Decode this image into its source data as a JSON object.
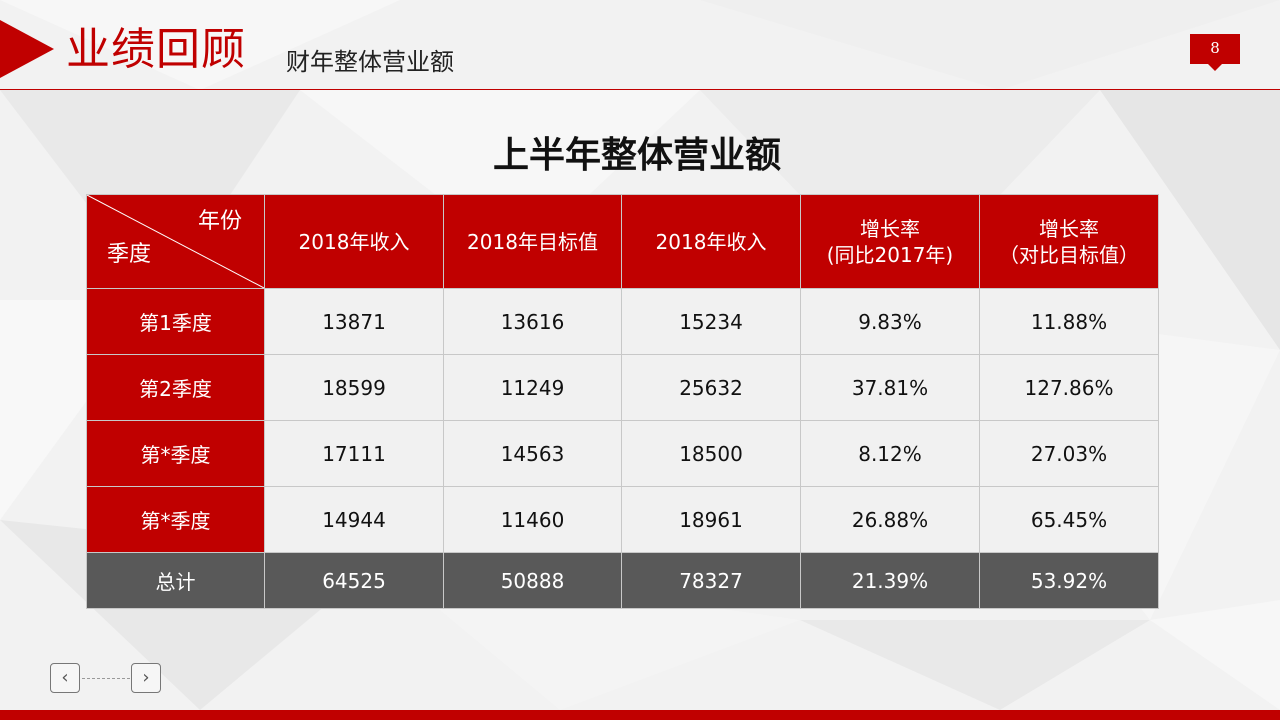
{
  "header": {
    "title": "业绩回顾",
    "subtitle": "财年整体营业额",
    "page_number": "8"
  },
  "table": {
    "title": "上半年整体营业额",
    "corner": {
      "top_label": "年份",
      "bottom_label": "季度"
    },
    "columns": [
      {
        "line1": "2018年收入",
        "line2": ""
      },
      {
        "line1": "2018年目标值",
        "line2": ""
      },
      {
        "line1": "2018年收入",
        "line2": ""
      },
      {
        "line1": "增长率",
        "line2": "(同比2017年)"
      },
      {
        "line1": "增长率",
        "line2": "（对比目标值）"
      }
    ],
    "rows": [
      {
        "label": "第1季度",
        "cells": [
          "13871",
          "13616",
          "15234",
          "9.83%",
          "11.88%"
        ]
      },
      {
        "label": "第2季度",
        "cells": [
          "18599",
          "11249",
          "25632",
          "37.81%",
          "127.86%"
        ]
      },
      {
        "label": "第*季度",
        "cells": [
          "17111",
          "14563",
          "18500",
          "8.12%",
          "27.03%"
        ]
      },
      {
        "label": "第*季度",
        "cells": [
          "14944",
          "11460",
          "18961",
          "26.88%",
          "65.45%"
        ]
      }
    ],
    "total": {
      "label": "总计",
      "cells": [
        "64525",
        "50888",
        "78327",
        "21.39%",
        "53.92%"
      ]
    }
  },
  "nav": {
    "prev_icon": "chevron-left-icon",
    "next_icon": "chevron-right-icon",
    "prev_glyph": "‹",
    "next_glyph": "›"
  },
  "colors": {
    "accent": "#c00000",
    "total_row": "#595959",
    "cell_bg": "#f1f1f1"
  }
}
